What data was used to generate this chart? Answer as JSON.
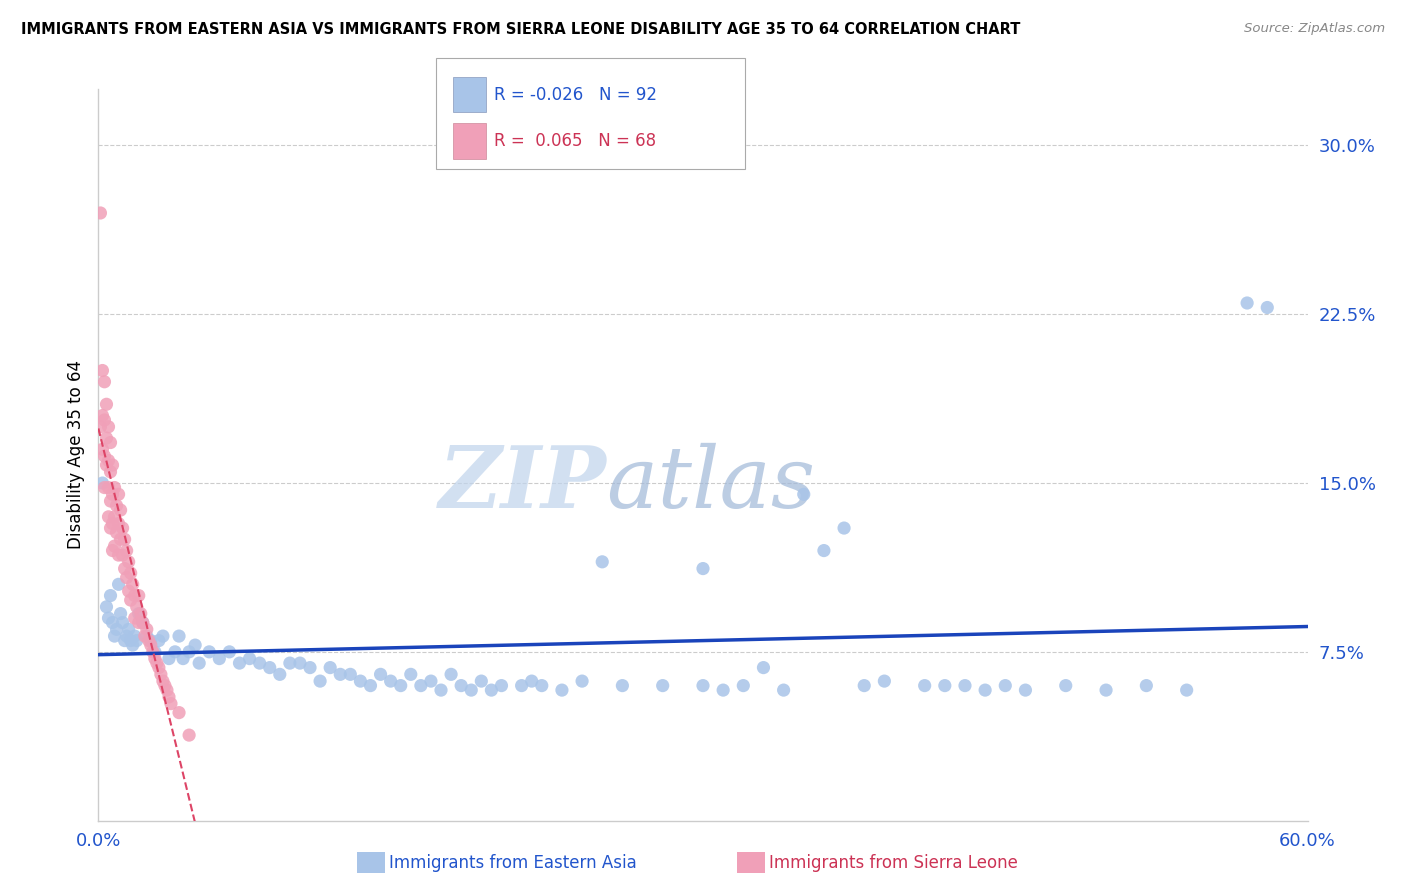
{
  "title": "IMMIGRANTS FROM EASTERN ASIA VS IMMIGRANTS FROM SIERRA LEONE DISABILITY AGE 35 TO 64 CORRELATION CHART",
  "source": "Source: ZipAtlas.com",
  "ylabel": "Disability Age 35 to 64",
  "xlim": [
    0.0,
    0.6
  ],
  "ylim": [
    0.0,
    0.325
  ],
  "xticks": [
    0.0,
    0.1,
    0.2,
    0.3,
    0.4,
    0.5,
    0.6
  ],
  "xticklabels": [
    "0.0%",
    "",
    "",
    "",
    "",
    "",
    "60.0%"
  ],
  "yticks": [
    0.075,
    0.15,
    0.225,
    0.3
  ],
  "yticklabels": [
    "7.5%",
    "15.0%",
    "22.5%",
    "30.0%"
  ],
  "series1_color": "#a8c4e8",
  "series2_color": "#f0a0b8",
  "series1_line_color": "#1a44bb",
  "series2_line_color": "#dd4466",
  "series1_label": "Immigrants from Eastern Asia",
  "series2_label": "Immigrants from Sierra Leone",
  "series1_R": "-0.026",
  "series1_N": "92",
  "series2_R": "0.065",
  "series2_N": "68",
  "watermark_zip": "ZIP",
  "watermark_atlas": "atlas",
  "grid_color": "#cccccc",
  "background_color": "#ffffff",
  "series1_x": [
    0.002,
    0.004,
    0.005,
    0.006,
    0.007,
    0.008,
    0.009,
    0.01,
    0.011,
    0.012,
    0.013,
    0.014,
    0.015,
    0.016,
    0.017,
    0.018,
    0.019,
    0.02,
    0.022,
    0.024,
    0.026,
    0.028,
    0.03,
    0.032,
    0.035,
    0.038,
    0.04,
    0.042,
    0.045,
    0.048,
    0.05,
    0.055,
    0.06,
    0.065,
    0.07,
    0.075,
    0.08,
    0.085,
    0.09,
    0.095,
    0.1,
    0.105,
    0.11,
    0.115,
    0.12,
    0.125,
    0.13,
    0.135,
    0.14,
    0.145,
    0.15,
    0.155,
    0.16,
    0.165,
    0.17,
    0.175,
    0.18,
    0.185,
    0.19,
    0.195,
    0.2,
    0.21,
    0.215,
    0.22,
    0.23,
    0.24,
    0.25,
    0.26,
    0.28,
    0.3,
    0.31,
    0.32,
    0.33,
    0.34,
    0.35,
    0.36,
    0.37,
    0.39,
    0.41,
    0.43,
    0.45,
    0.46,
    0.48,
    0.5,
    0.52,
    0.54,
    0.3,
    0.38,
    0.42,
    0.44,
    0.57,
    0.58
  ],
  "series1_y": [
    0.15,
    0.095,
    0.09,
    0.1,
    0.088,
    0.082,
    0.085,
    0.105,
    0.092,
    0.088,
    0.08,
    0.082,
    0.085,
    0.08,
    0.078,
    0.082,
    0.08,
    0.092,
    0.088,
    0.082,
    0.08,
    0.075,
    0.08,
    0.082,
    0.072,
    0.075,
    0.082,
    0.072,
    0.075,
    0.078,
    0.07,
    0.075,
    0.072,
    0.075,
    0.07,
    0.072,
    0.07,
    0.068,
    0.065,
    0.07,
    0.07,
    0.068,
    0.062,
    0.068,
    0.065,
    0.065,
    0.062,
    0.06,
    0.065,
    0.062,
    0.06,
    0.065,
    0.06,
    0.062,
    0.058,
    0.065,
    0.06,
    0.058,
    0.062,
    0.058,
    0.06,
    0.06,
    0.062,
    0.06,
    0.058,
    0.062,
    0.115,
    0.06,
    0.06,
    0.06,
    0.058,
    0.06,
    0.068,
    0.058,
    0.145,
    0.12,
    0.13,
    0.062,
    0.06,
    0.06,
    0.06,
    0.058,
    0.06,
    0.058,
    0.06,
    0.058,
    0.112,
    0.06,
    0.06,
    0.058,
    0.23,
    0.228
  ],
  "series2_x": [
    0.001,
    0.001,
    0.002,
    0.002,
    0.002,
    0.003,
    0.003,
    0.003,
    0.003,
    0.004,
    0.004,
    0.004,
    0.005,
    0.005,
    0.005,
    0.005,
    0.006,
    0.006,
    0.006,
    0.006,
    0.007,
    0.007,
    0.007,
    0.007,
    0.008,
    0.008,
    0.008,
    0.009,
    0.009,
    0.01,
    0.01,
    0.01,
    0.011,
    0.011,
    0.012,
    0.012,
    0.013,
    0.013,
    0.014,
    0.014,
    0.015,
    0.015,
    0.016,
    0.016,
    0.017,
    0.018,
    0.018,
    0.019,
    0.02,
    0.02,
    0.021,
    0.022,
    0.023,
    0.024,
    0.025,
    0.026,
    0.027,
    0.028,
    0.029,
    0.03,
    0.031,
    0.032,
    0.033,
    0.034,
    0.035,
    0.036,
    0.04,
    0.045
  ],
  "series2_y": [
    0.27,
    0.175,
    0.2,
    0.18,
    0.165,
    0.195,
    0.178,
    0.162,
    0.148,
    0.185,
    0.17,
    0.158,
    0.175,
    0.16,
    0.148,
    0.135,
    0.168,
    0.155,
    0.142,
    0.13,
    0.158,
    0.145,
    0.132,
    0.12,
    0.148,
    0.135,
    0.122,
    0.14,
    0.128,
    0.145,
    0.132,
    0.118,
    0.138,
    0.125,
    0.13,
    0.118,
    0.125,
    0.112,
    0.12,
    0.108,
    0.115,
    0.102,
    0.11,
    0.098,
    0.105,
    0.1,
    0.09,
    0.095,
    0.1,
    0.088,
    0.092,
    0.088,
    0.082,
    0.085,
    0.08,
    0.078,
    0.075,
    0.072,
    0.07,
    0.068,
    0.065,
    0.062,
    0.06,
    0.058,
    0.055,
    0.052,
    0.048,
    0.038
  ]
}
